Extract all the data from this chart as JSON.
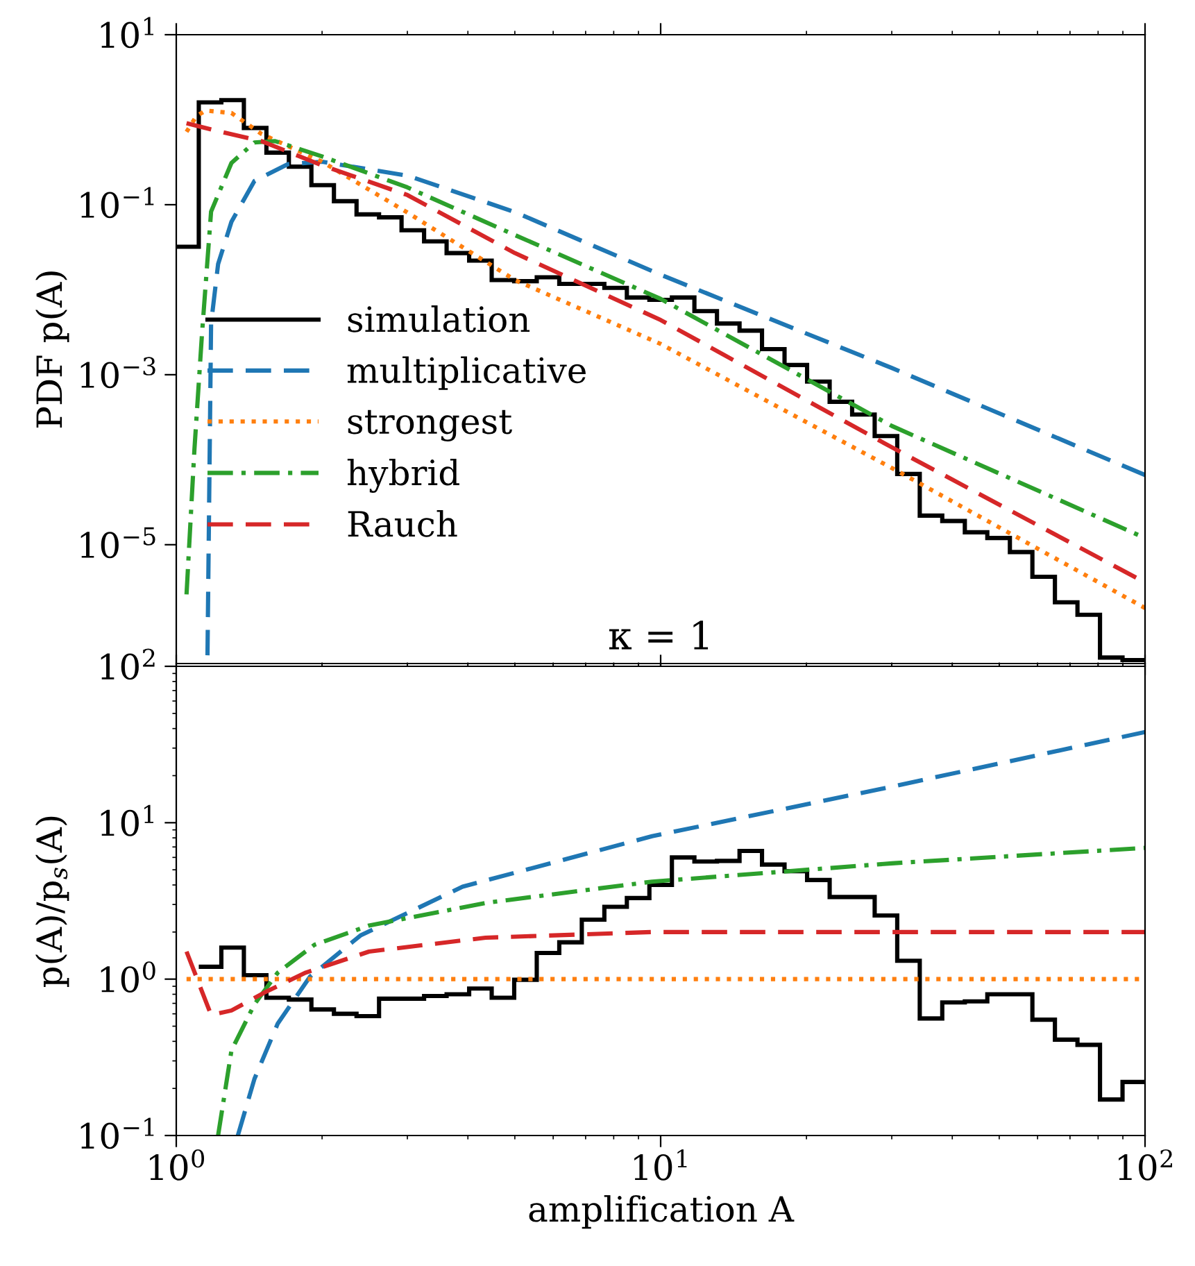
{
  "chart_data": [
    {
      "type": "line",
      "ylabel": "PDF p(A)",
      "log": "xy",
      "xlim": [
        1,
        100
      ],
      "ylim": [
        4e-07,
        10
      ],
      "xticks": [
        {
          "value": 1,
          "label": null
        },
        {
          "value": 10,
          "label": null
        },
        {
          "value": 100,
          "label": null
        }
      ],
      "yticks": [
        {
          "value": 10,
          "label": "10$^{1}$"
        },
        {
          "value": 0.1,
          "label": "10$^{−1}$"
        },
        {
          "value": 0.001,
          "label": "10$^{−3}$"
        },
        {
          "value": 1e-05,
          "label": "10$^{−5}$"
        }
      ],
      "tick_labels": "y",
      "grid": false,
      "legend": "center left",
      "annotations": [
        "κ = 1"
      ],
      "series": [
        {
          "name": "simulation",
          "type": "histogram",
          "color": "#000000",
          "line_style": "solid",
          "bins": [
            1,
            1.113,
            1.239,
            1.379,
            1.535,
            1.708,
            1.901,
            2.116,
            2.356,
            2.622,
            2.918,
            3.248,
            3.615,
            4.024,
            4.479,
            4.985,
            5.549,
            6.176,
            6.874,
            7.652,
            8.516,
            9.479,
            10.55,
            11.74,
            13.07,
            14.55,
            16.19,
            18.02,
            20.06,
            22.33,
            24.85,
            27.66,
            30.79,
            34.27,
            38.14,
            42.46,
            47.25,
            52.6,
            58.54,
            65.16,
            72.53,
            80.73,
            89.85,
            100
          ],
          "values": [
            0.032,
            1.6,
            1.7,
            0.8,
            0.41,
            0.28,
            0.17,
            0.11,
            0.077,
            0.071,
            0.05,
            0.037,
            0.027,
            0.022,
            0.013,
            0.0126,
            0.014,
            0.0117,
            0.0117,
            0.0105,
            0.0081,
            0.0076,
            0.0081,
            0.0056,
            0.004,
            0.0033,
            0.002,
            0.0013,
            0.00083,
            0.00048,
            0.00034,
            0.00019,
            6.8e-05,
            2.2e-05,
            1.9e-05,
            1.4e-05,
            1.2e-05,
            8.2e-06,
            4.2e-06,
            2.1e-06,
            1.5e-06,
            4.7e-07,
            4.4e-07
          ]
        },
        {
          "name": "multiplicative",
          "color": "#1f77b4",
          "line_style": "dashed",
          "x": [
            1.16,
            1.18,
            1.22,
            1.3,
            1.45,
            1.7,
            2,
            3,
            5,
            10,
            30,
            100
          ],
          "values": [
            5e-07,
            0.004,
            0.02,
            0.063,
            0.19,
            0.3,
            0.32,
            0.22,
            0.082,
            0.015,
            0.0012,
            6.6e-05
          ]
        },
        {
          "name": "strongest",
          "color": "#ff7f0e",
          "line_style": "dotted",
          "x": [
            1.05,
            1.1,
            1.15,
            1.3,
            1.5,
            2,
            3,
            5,
            10,
            30,
            100
          ],
          "values": [
            0.72,
            1.1,
            1.28,
            1.2,
            0.68,
            0.32,
            0.081,
            0.013,
            0.0023,
            8e-05,
            1.8e-06
          ]
        },
        {
          "name": "hybrid",
          "color": "#2ca02c",
          "line_style": "dashdot",
          "x": [
            1.05,
            1.09,
            1.13,
            1.18,
            1.3,
            1.45,
            1.6,
            2,
            3,
            5,
            10,
            30,
            100
          ],
          "values": [
            2.6e-06,
            0.00013,
            0.003,
            0.083,
            0.31,
            0.54,
            0.56,
            0.37,
            0.16,
            0.044,
            0.0078,
            0.00025,
            1.2e-05
          ]
        },
        {
          "name": "Rauch",
          "color": "#d62728",
          "line_style": "dashed",
          "x": [
            1.05,
            1.2,
            1.5,
            2,
            3,
            5,
            10,
            30,
            100
          ],
          "values": [
            0.91,
            0.75,
            0.56,
            0.29,
            0.13,
            0.027,
            0.0044,
            0.00014,
            3.6e-06
          ]
        }
      ]
    },
    {
      "type": "line",
      "xlabel": "amplification A",
      "ylabel": "p(A)/p$_{s}$(A)",
      "log": "xy",
      "xlim": [
        1,
        100
      ],
      "ylim": [
        0.1,
        100
      ],
      "xticks": [
        {
          "value": 1,
          "label": "10$^{0}$"
        },
        {
          "value": 10,
          "label": "10$^{1}$"
        },
        {
          "value": 100,
          "label": "10$^{2}$"
        }
      ],
      "yticks": [
        {
          "value": 0.1,
          "label": "10$^{−1}$"
        },
        {
          "value": 1,
          "label": "10$^{0}$"
        },
        {
          "value": 10,
          "label": "10$^{1}$"
        },
        {
          "value": 100,
          "label": "10$^{2}$"
        }
      ],
      "grid": false,
      "series": [
        {
          "type": "histogram",
          "color": "#000000",
          "line_style": "solid",
          "bins": [
            1.113,
            1.239,
            1.379,
            1.535,
            1.708,
            1.901,
            2.116,
            2.356,
            2.622,
            2.918,
            3.248,
            3.615,
            4.024,
            4.479,
            4.985,
            5.549,
            6.176,
            6.874,
            7.652,
            8.516,
            9.479,
            10.55,
            11.74,
            13.07,
            14.55,
            16.19,
            18.02,
            20.06,
            22.33,
            24.85,
            27.66,
            30.79,
            34.27,
            38.14,
            42.46,
            47.25,
            52.6,
            58.54,
            65.16,
            72.53,
            80.73,
            89.85,
            100
          ],
          "values": [
            1.2,
            1.59,
            1.06,
            0.76,
            0.74,
            0.64,
            0.6,
            0.58,
            0.75,
            0.75,
            0.78,
            0.8,
            0.87,
            0.76,
            0.99,
            1.47,
            1.72,
            2.4,
            2.9,
            3.3,
            4.0,
            6.0,
            5.65,
            5.7,
            6.6,
            5.4,
            4.9,
            4.3,
            3.35,
            3.35,
            2.55,
            1.31,
            0.56,
            0.71,
            0.72,
            0.8,
            0.8,
            0.55,
            0.41,
            0.38,
            0.17,
            0.22
          ]
        },
        {
          "color": "#1f77b4",
          "line_style": "dashed",
          "x": [
            1.34,
            1.45,
            1.62,
            1.89,
            2.4,
            3.9,
            9.6,
            30,
            100
          ],
          "values": [
            0.1,
            0.23,
            0.52,
            1.04,
            1.9,
            3.9,
            8.2,
            17,
            38
          ]
        },
        {
          "color": "#ff7f0e",
          "line_style": "dotted",
          "x": [
            1.05,
            100
          ],
          "values": [
            1,
            1
          ]
        },
        {
          "color": "#2ca02c",
          "line_style": "dashdot",
          "x": [
            1.22,
            1.3,
            1.45,
            1.62,
            1.93,
            2.5,
            4.35,
            9.6,
            30,
            100
          ],
          "values": [
            0.1,
            0.35,
            0.69,
            1.1,
            1.66,
            2.2,
            3.07,
            4.2,
            5.5,
            6.9
          ]
        },
        {
          "color": "#d62728",
          "line_style": "dashed",
          "x": [
            1.05,
            1.18,
            1.3,
            1.52,
            1.85,
            2.5,
            4.35,
            9.6,
            100
          ],
          "values": [
            1.5,
            0.59,
            0.63,
            0.82,
            1.1,
            1.5,
            1.84,
            2.0,
            2.0
          ]
        }
      ]
    }
  ]
}
